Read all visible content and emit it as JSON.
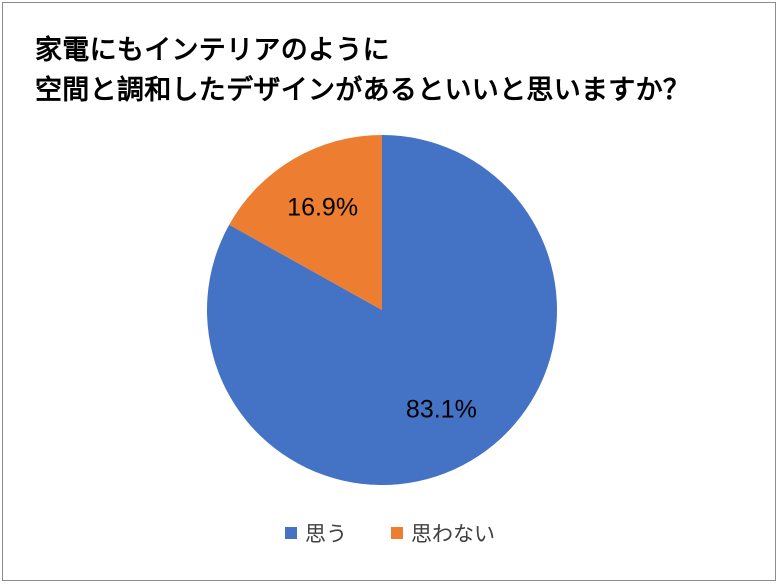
{
  "title_lines": [
    "家電にもインテリアのように",
    "空間と調和したデザインがあるといいと思いますか？"
  ],
  "chart_data": {
    "type": "pie",
    "title": "家電にもインテリアのように空間と調和したデザインがあるといいと思いますか？",
    "slices": [
      {
        "label": "思う",
        "value": 83.1,
        "display": "83.1%",
        "color": "#4472C4"
      },
      {
        "label": "思わない",
        "value": 16.9,
        "display": "16.9%",
        "color": "#ED7D31"
      }
    ],
    "start_angle": "12 o'clock",
    "direction": "clockwise",
    "legend_position": "bottom"
  }
}
